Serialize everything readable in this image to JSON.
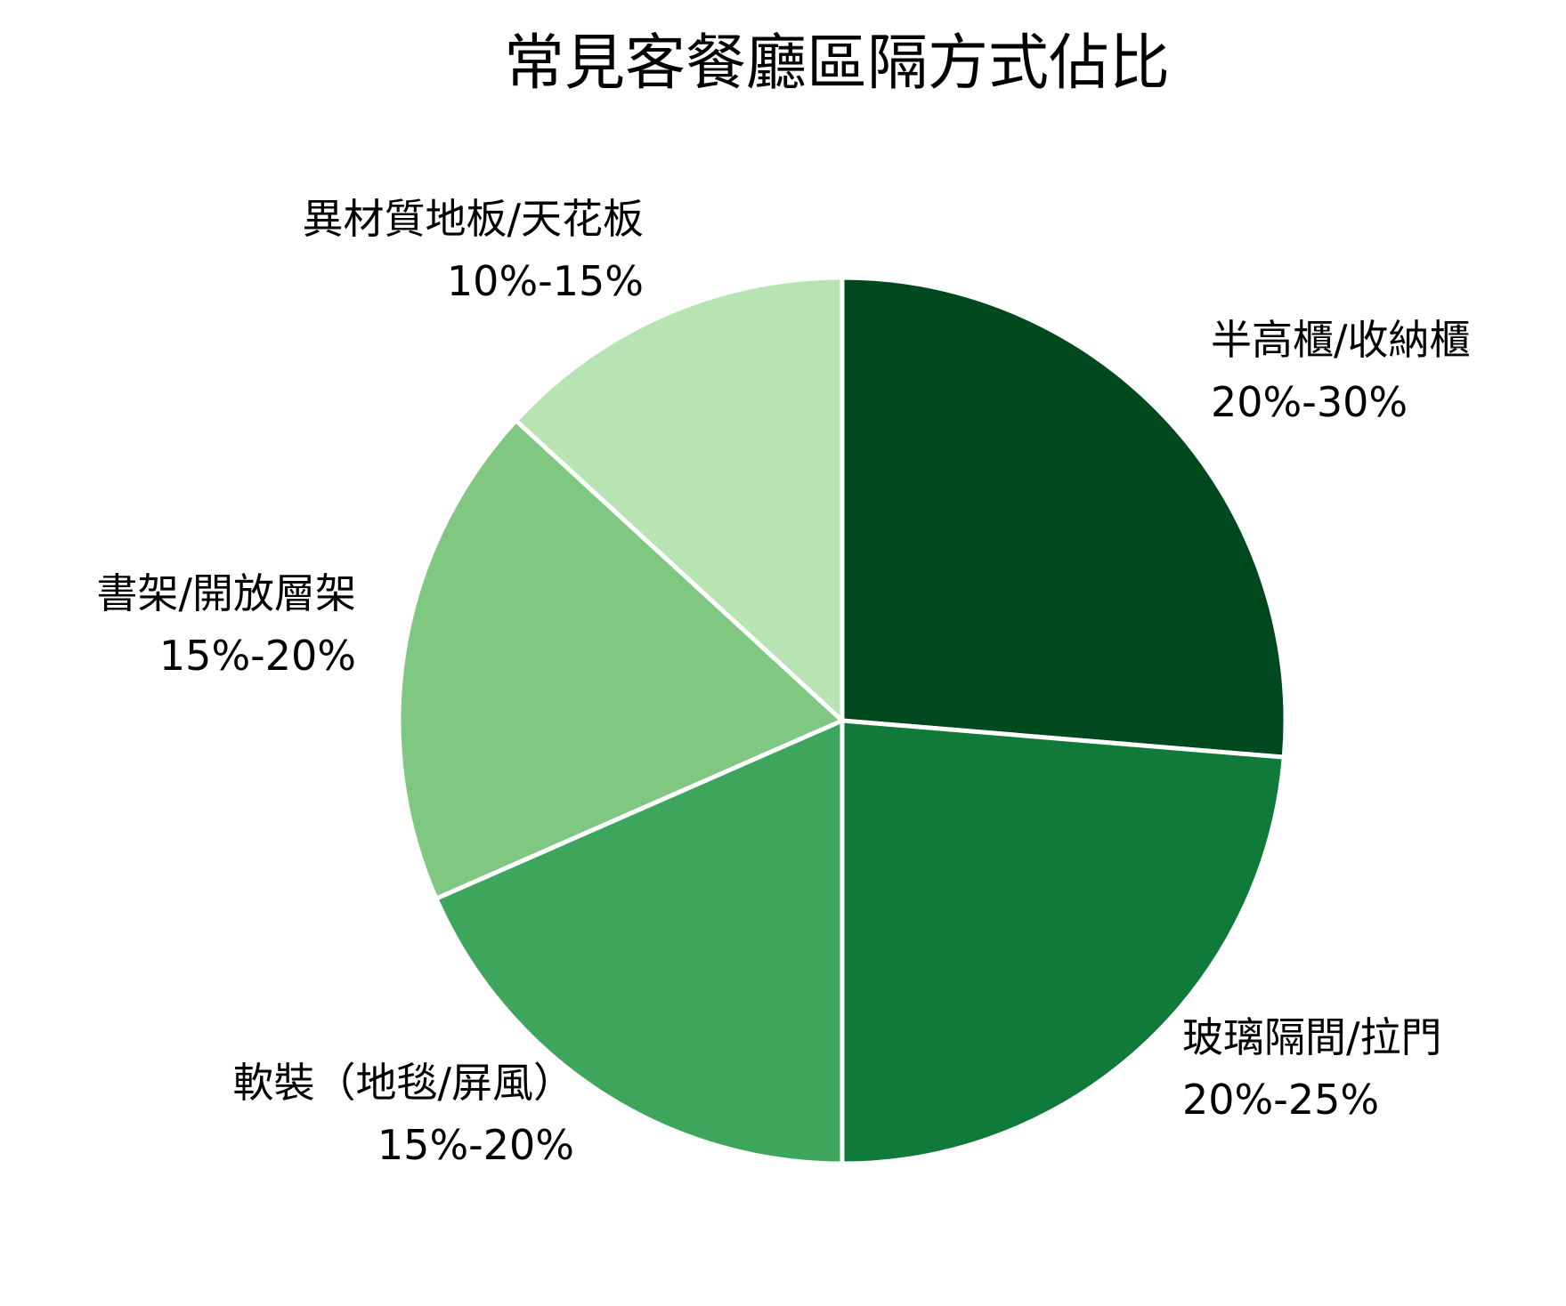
{
  "chart_data": {
    "type": "pie",
    "title": "常見客餐廳區隔方式佔比",
    "start_angle_deg": 90,
    "direction": "clockwise",
    "slices": [
      {
        "name": "半高櫃/收納櫃",
        "range": "20%-30%",
        "value": 25,
        "color": "#00481d"
      },
      {
        "name": "玻璃隔間/拉門",
        "range": "20%-25%",
        "value": 22.5,
        "color": "#107a3a"
      },
      {
        "name": "軟裝（地毯/屏風）",
        "range": "15%-20%",
        "value": 17.5,
        "color": "#3ea65c"
      },
      {
        "name": "書架/開放層架",
        "range": "15%-20%",
        "value": 17.5,
        "color": "#80c782"
      },
      {
        "name": "異材質地板/天花板",
        "range": "10%-15%",
        "value": 12.5,
        "color": "#b8e3b3"
      }
    ]
  }
}
